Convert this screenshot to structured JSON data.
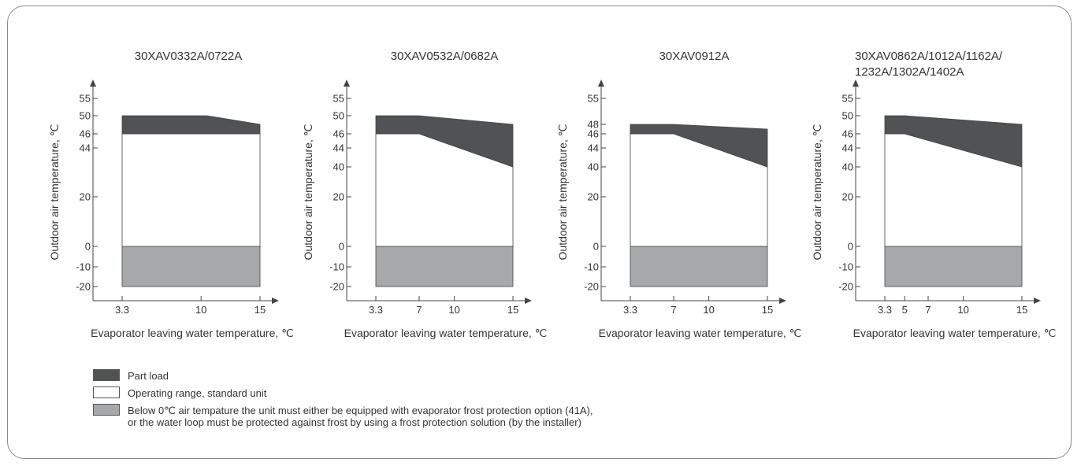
{
  "colors": {
    "part_load": "#505254",
    "standard": "#ffffff",
    "frost": "#a6a8aa",
    "axis": "#444444"
  },
  "chart_data": [
    {
      "type": "area",
      "title_lines": [
        "30XAV0332A/0722A"
      ],
      "ylabel": "Outdoor air temperature, ℃",
      "xlabel": "Evaporator leaving water temperature, ℃",
      "y_ticks": [
        55,
        50,
        46,
        44,
        20,
        0,
        -10,
        -20
      ],
      "x_ticks": [
        3.3,
        10,
        15
      ],
      "ylim": [
        -20,
        55
      ],
      "xlim": [
        3.3,
        15
      ],
      "frost_region": {
        "y_top": 0,
        "y_bottom": -20,
        "x": [
          3.3,
          15
        ]
      },
      "standard_top": [
        {
          "x": 3.3,
          "y": 46
        },
        {
          "x": 15,
          "y": 46
        }
      ],
      "part_load_top": [
        {
          "x": 3.3,
          "y": 50
        },
        {
          "x": 10.5,
          "y": 50
        },
        {
          "x": 15,
          "y": 48
        }
      ]
    },
    {
      "type": "area",
      "title_lines": [
        "30XAV0532A/0682A"
      ],
      "ylabel": "Outdoor air temperature, ℃",
      "xlabel": "Evaporator leaving water temperature, ℃",
      "y_ticks": [
        55,
        50,
        46,
        44,
        40,
        20,
        0,
        -10,
        -20
      ],
      "x_ticks": [
        3.3,
        7,
        10,
        15
      ],
      "ylim": [
        -20,
        55
      ],
      "xlim": [
        3.3,
        15
      ],
      "frost_region": {
        "y_top": 0,
        "y_bottom": -20,
        "x": [
          3.3,
          15
        ]
      },
      "standard_top": [
        {
          "x": 3.3,
          "y": 46
        },
        {
          "x": 7,
          "y": 46
        },
        {
          "x": 15,
          "y": 40
        }
      ],
      "part_load_top": [
        {
          "x": 3.3,
          "y": 50
        },
        {
          "x": 7,
          "y": 50
        },
        {
          "x": 15,
          "y": 48
        }
      ]
    },
    {
      "type": "area",
      "title_lines": [
        "30XAV0912A"
      ],
      "ylabel": "Outdoor air temperature, ℃",
      "xlabel": "Evaporator leaving water temperature, ℃",
      "y_ticks": [
        55,
        48,
        46,
        44,
        40,
        20,
        0,
        -10,
        -20
      ],
      "x_ticks": [
        3.3,
        7,
        10,
        15
      ],
      "ylim": [
        -20,
        55
      ],
      "xlim": [
        3.3,
        15
      ],
      "frost_region": {
        "y_top": 0,
        "y_bottom": -20,
        "x": [
          3.3,
          15
        ]
      },
      "standard_top": [
        {
          "x": 3.3,
          "y": 46
        },
        {
          "x": 7,
          "y": 46
        },
        {
          "x": 15,
          "y": 40
        }
      ],
      "part_load_top": [
        {
          "x": 3.3,
          "y": 48
        },
        {
          "x": 7,
          "y": 48
        },
        {
          "x": 15,
          "y": 47
        }
      ]
    },
    {
      "type": "area",
      "title_lines": [
        "30XAV0862A/1012A/1162A/",
        "1232A/1302A/1402A"
      ],
      "ylabel": "Outdoor air temperature, ℃",
      "xlabel": "Evaporator leaving water temperature, ℃",
      "y_ticks": [
        55,
        50,
        46,
        44,
        40,
        20,
        0,
        -10,
        -20
      ],
      "x_ticks": [
        3.3,
        5,
        7,
        10,
        15
      ],
      "ylim": [
        -20,
        55
      ],
      "xlim": [
        3.3,
        15
      ],
      "frost_region": {
        "y_top": 0,
        "y_bottom": -20,
        "x": [
          3.3,
          15
        ]
      },
      "standard_top": [
        {
          "x": 3.3,
          "y": 46
        },
        {
          "x": 5,
          "y": 46
        },
        {
          "x": 15,
          "y": 40
        }
      ],
      "part_load_top": [
        {
          "x": 3.3,
          "y": 50
        },
        {
          "x": 5,
          "y": 50
        },
        {
          "x": 15,
          "y": 48
        }
      ]
    }
  ],
  "legend": [
    {
      "key": "part_load",
      "text": "Part load"
    },
    {
      "key": "standard",
      "text": "Operating range, standard unit"
    },
    {
      "key": "frost",
      "text": "Below 0℃ air tempature the unit must either be equipped with evaporator frost protection option (41A),",
      "text2": "or the water loop must be protected against frost by using a frost protection solution (by the installer)"
    }
  ]
}
